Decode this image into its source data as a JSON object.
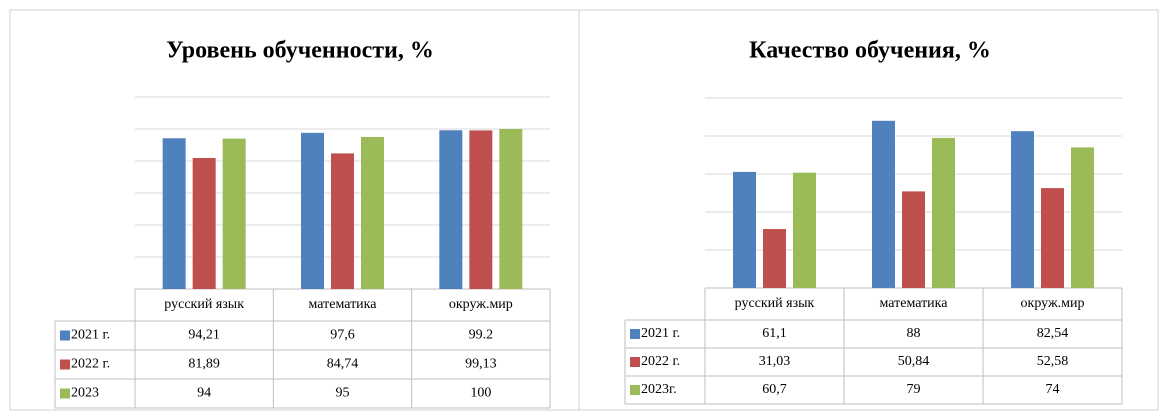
{
  "chart_data": [
    {
      "type": "bar",
      "title": "Уровень обученности, %",
      "categories": [
        "русский язык",
        "математика",
        "окруж.мир"
      ],
      "series": [
        {
          "name": "2021 г.",
          "color": "#4f81bd",
          "values": [
            94.21,
            97.6,
            99.2
          ],
          "value_labels": [
            "94,21",
            "97,6",
            "99.2"
          ]
        },
        {
          "name": "2022 г.",
          "color": "#c0504d",
          "values": [
            81.89,
            84.74,
            99.13
          ],
          "value_labels": [
            "81,89",
            "84,74",
            "99,13"
          ]
        },
        {
          "name": "2023",
          "color": "#9bbb59",
          "values": [
            94,
            95,
            100
          ],
          "value_labels": [
            "94",
            "95",
            "100"
          ]
        }
      ],
      "ylim": [
        0,
        120
      ],
      "yticks": [
        0,
        20,
        40,
        60,
        80,
        100,
        120
      ],
      "grid": true
    },
    {
      "type": "bar",
      "title": "Качество обучения, %",
      "categories": [
        "русский язык",
        "математика",
        "окруж.мир"
      ],
      "series": [
        {
          "name": "2021 г.",
          "color": "#4f81bd",
          "values": [
            61.1,
            88,
            82.54
          ],
          "value_labels": [
            "61,1",
            "88",
            "82,54"
          ]
        },
        {
          "name": "2022 г.",
          "color": "#c0504d",
          "values": [
            31.03,
            50.84,
            52.58
          ],
          "value_labels": [
            "31,03",
            "50,84",
            "52,58"
          ]
        },
        {
          "name": "2023г.",
          "color": "#9bbb59",
          "values": [
            60.7,
            79,
            74
          ],
          "value_labels": [
            "60,7",
            "79",
            "74"
          ]
        }
      ],
      "ylim": [
        0,
        100
      ],
      "yticks": [
        0,
        20,
        40,
        60,
        80,
        100
      ],
      "grid": true
    }
  ]
}
